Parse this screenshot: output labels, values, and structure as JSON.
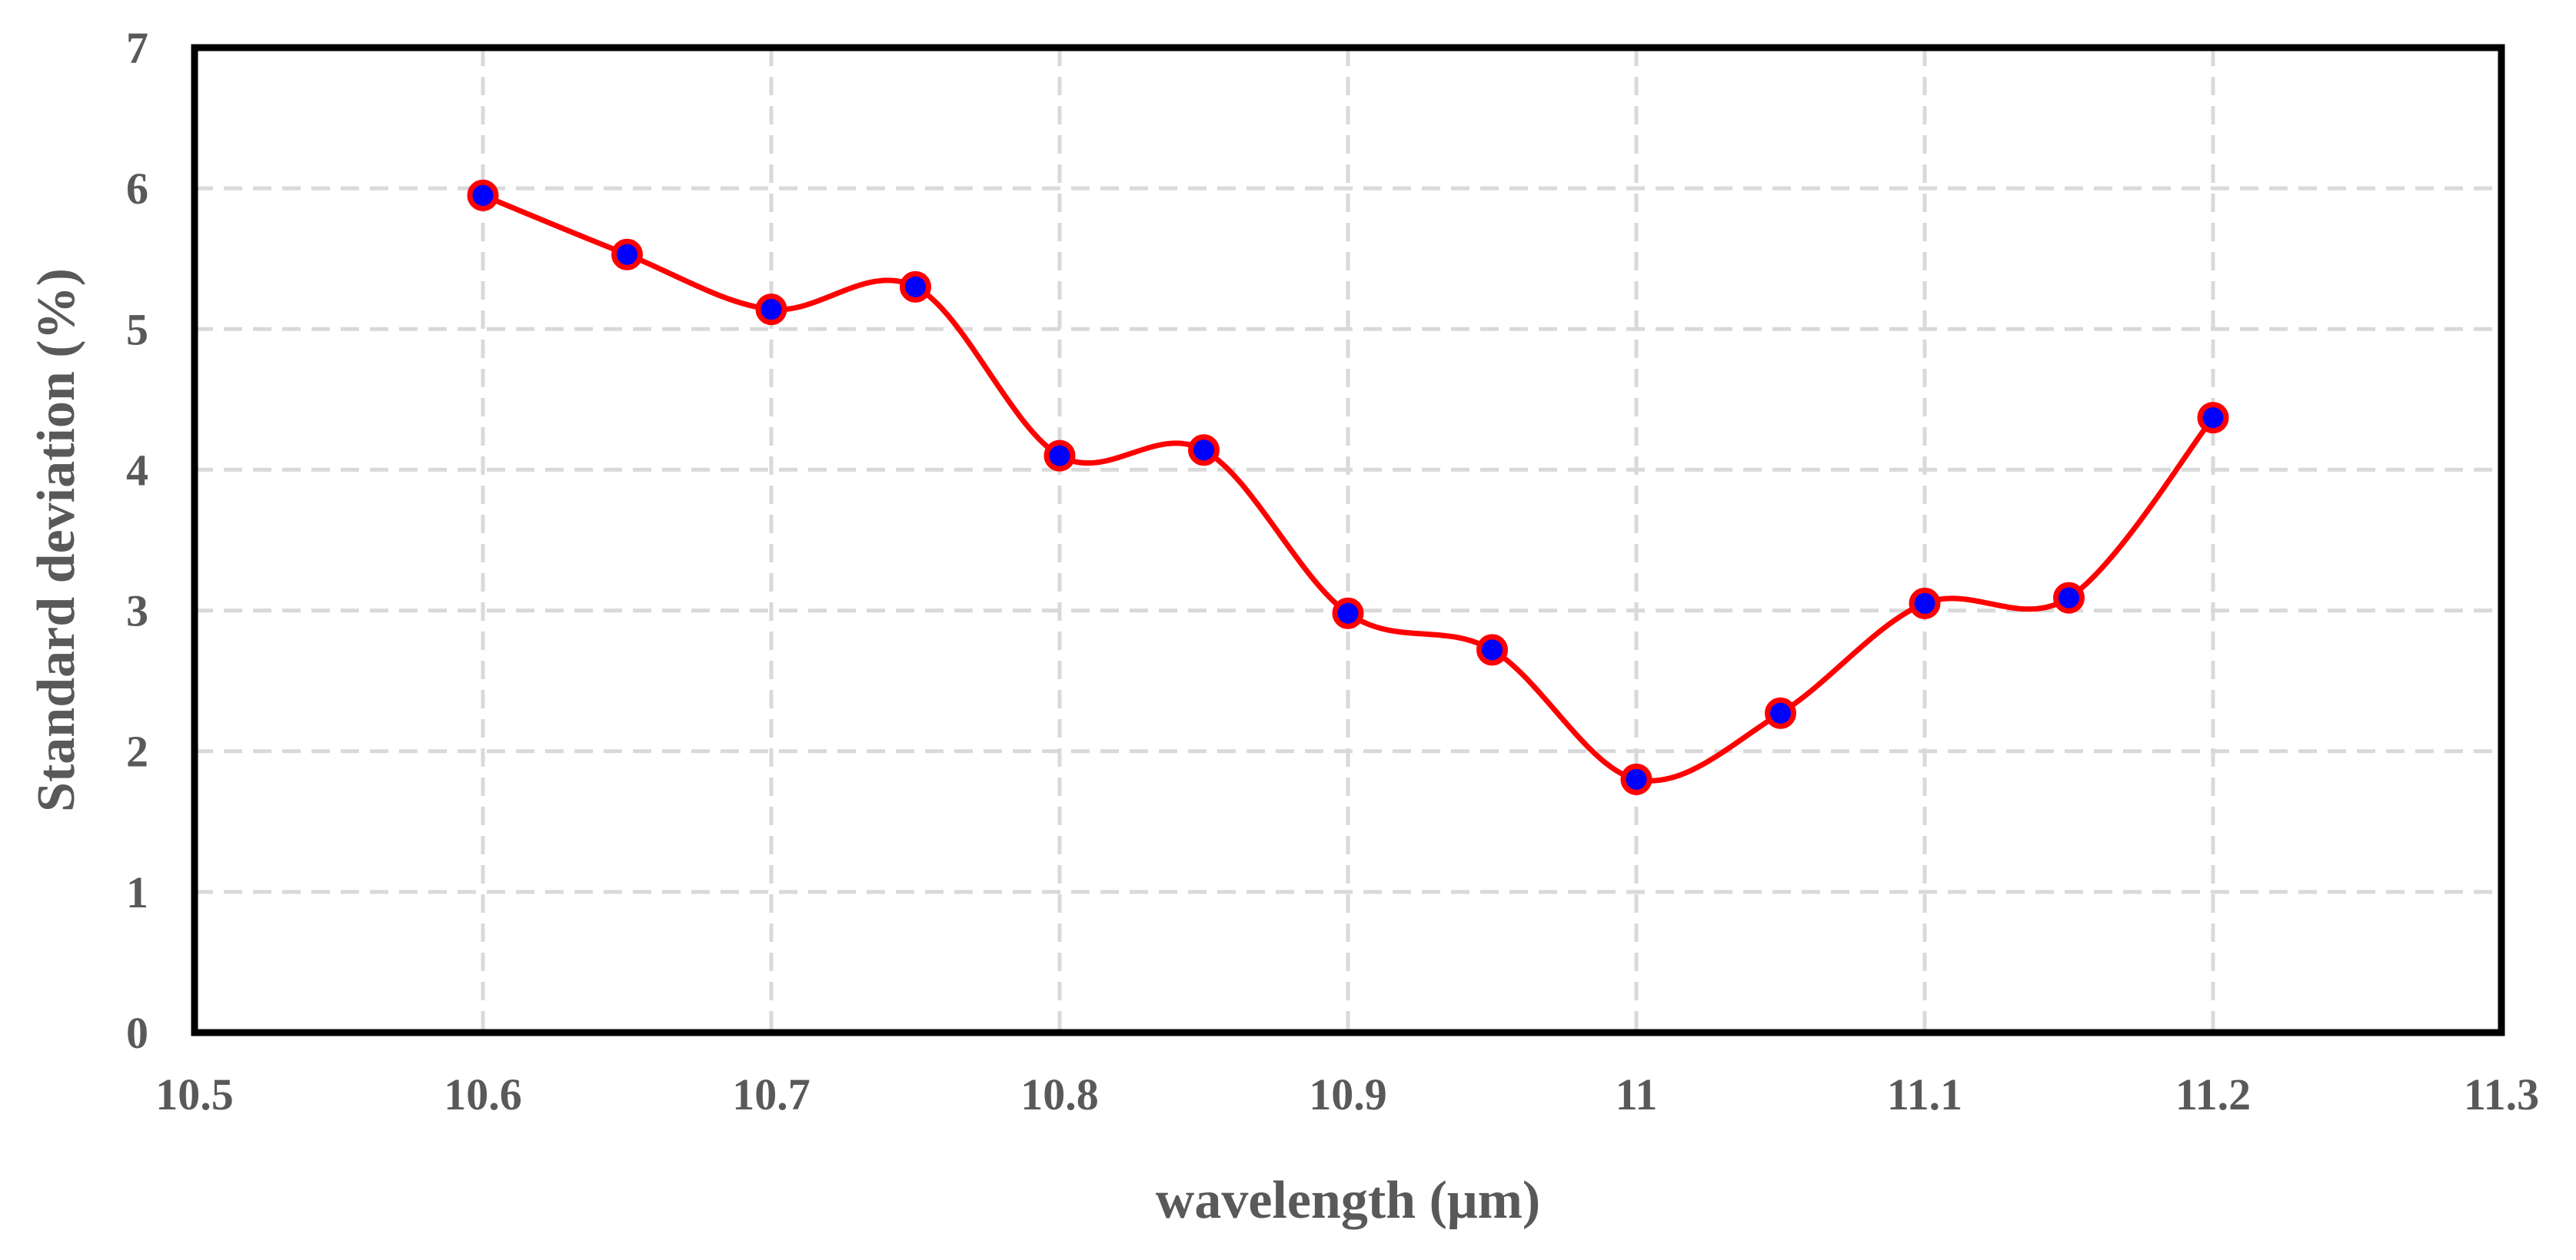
{
  "chart_data": {
    "type": "scatter",
    "title": "",
    "xlabel": "wavelength (μm)",
    "ylabel": "Standard deviation (%)",
    "xlim": [
      10.5,
      11.3
    ],
    "ylim": [
      0,
      7
    ],
    "xticks": [
      10.5,
      10.6,
      10.7,
      10.8,
      10.9,
      11.0,
      11.1,
      11.2,
      11.3
    ],
    "xtick_labels": [
      "10.5",
      "10.6",
      "10.7",
      "10.8",
      "10.9",
      "11",
      "11.1",
      "11.2",
      "11.3"
    ],
    "yticks": [
      0,
      1,
      2,
      3,
      4,
      5,
      6,
      7
    ],
    "ytick_labels": [
      "0",
      "1",
      "2",
      "3",
      "4",
      "5",
      "6",
      "7"
    ],
    "grid": true,
    "smooth_line": true,
    "series": [
      {
        "name": "Standard deviation",
        "line_color": "#ff0000",
        "marker_fill": "#0000ff",
        "marker_edge": "#ff0000",
        "x": [
          10.6,
          10.65,
          10.7,
          10.75,
          10.8,
          10.85,
          10.9,
          10.95,
          11.0,
          11.05,
          11.1,
          11.15,
          11.2
        ],
        "y": [
          5.95,
          5.53,
          5.14,
          5.3,
          4.1,
          4.14,
          2.98,
          2.72,
          1.8,
          2.27,
          3.05,
          3.09,
          4.37
        ]
      }
    ]
  }
}
